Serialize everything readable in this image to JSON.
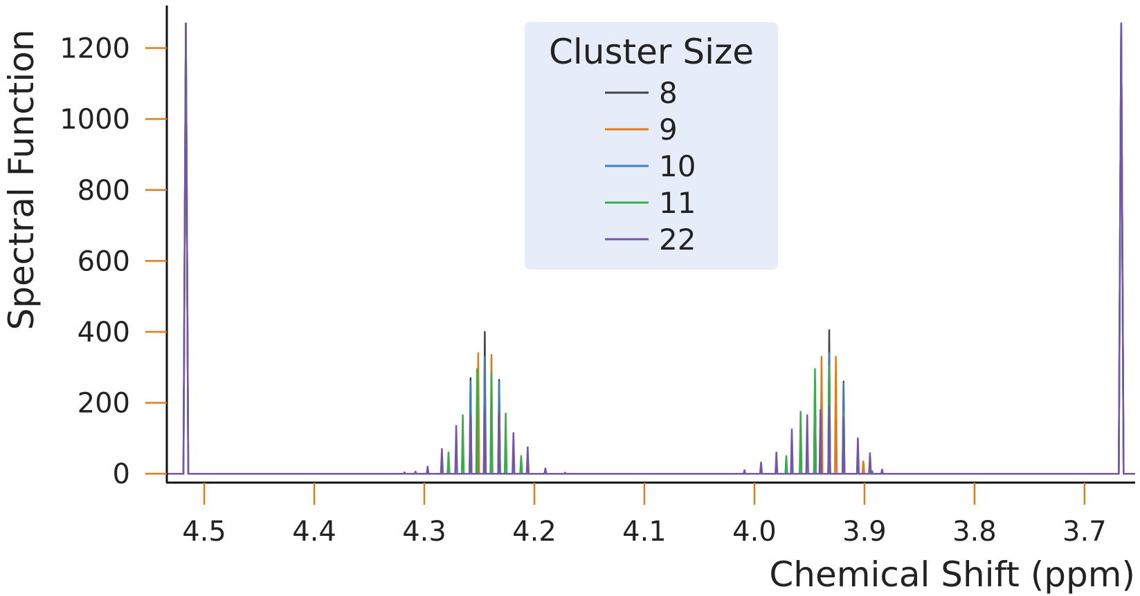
{
  "chart_data": {
    "type": "line",
    "title": "",
    "xlabel": "Chemical Shift (ppm)",
    "ylabel": "Spectral Function",
    "xlim": [
      4.534,
      3.654
    ],
    "ylim": [
      -25,
      1320
    ],
    "x_inverted": true,
    "x_ticks": [
      "4.5",
      "4.4",
      "4.3",
      "4.2",
      "4.1",
      "4.0",
      "3.9",
      "3.8",
      "3.7"
    ],
    "y_ticks": [
      "0",
      "200",
      "400",
      "600",
      "800",
      "1000",
      "1200"
    ],
    "tick_color": "#e07b1a",
    "grid": false,
    "legend": {
      "title": "Cluster Size",
      "placement": "top-center",
      "background": "#e6ecf8"
    },
    "series": [
      {
        "name": "8",
        "color": "#444444",
        "peaks": [
          [
            4.5167,
            1270
          ],
          [
            3.6667,
            1270
          ],
          [
            4.258,
            270
          ],
          [
            4.245,
            400
          ],
          [
            4.232,
            265
          ],
          [
            3.945,
            265
          ],
          [
            3.932,
            405
          ],
          [
            3.919,
            260
          ]
        ]
      },
      {
        "name": "9",
        "color": "#e07b1a",
        "peaks": [
          [
            4.5167,
            1270
          ],
          [
            3.6667,
            1270
          ],
          [
            4.251,
            340
          ],
          [
            4.239,
            335
          ],
          [
            3.939,
            330
          ],
          [
            3.926,
            330
          ],
          [
            3.901,
            35
          ]
        ]
      },
      {
        "name": "10",
        "color": "#3d7cc9",
        "peaks": [
          [
            4.5167,
            1270
          ],
          [
            3.6667,
            1270
          ],
          [
            4.258,
            260
          ],
          [
            4.245,
            330
          ],
          [
            4.232,
            260
          ],
          [
            3.945,
            260
          ],
          [
            3.932,
            340
          ],
          [
            3.919,
            255
          ]
        ]
      },
      {
        "name": "11",
        "color": "#3aab4a",
        "peaks": [
          [
            4.5167,
            1270
          ],
          [
            3.6667,
            1270
          ],
          [
            4.278,
            60
          ],
          [
            4.265,
            165
          ],
          [
            4.252,
            295
          ],
          [
            4.239,
            285
          ],
          [
            4.226,
            170
          ],
          [
            4.212,
            50
          ],
          [
            3.971,
            50
          ],
          [
            3.958,
            175
          ],
          [
            3.945,
            295
          ],
          [
            3.932,
            305
          ],
          [
            3.919,
            170
          ],
          [
            3.893,
            8
          ]
        ]
      },
      {
        "name": "22",
        "color": "#7455a8",
        "peaks": [
          [
            4.5167,
            1270
          ],
          [
            3.6667,
            1270
          ],
          [
            4.318,
            4
          ],
          [
            4.308,
            6
          ],
          [
            4.297,
            20
          ],
          [
            4.284,
            70
          ],
          [
            4.271,
            135
          ],
          [
            4.258,
            165
          ],
          [
            4.245,
            185
          ],
          [
            4.232,
            170
          ],
          [
            4.219,
            115
          ],
          [
            4.206,
            75
          ],
          [
            4.19,
            15
          ],
          [
            4.172,
            3
          ],
          [
            4.009,
            10
          ],
          [
            3.994,
            32
          ],
          [
            3.98,
            60
          ],
          [
            3.966,
            125
          ],
          [
            3.952,
            165
          ],
          [
            3.94,
            180
          ],
          [
            3.932,
            190
          ],
          [
            3.919,
            160
          ],
          [
            3.906,
            100
          ],
          [
            3.895,
            58
          ],
          [
            3.884,
            12
          ]
        ]
      }
    ]
  }
}
